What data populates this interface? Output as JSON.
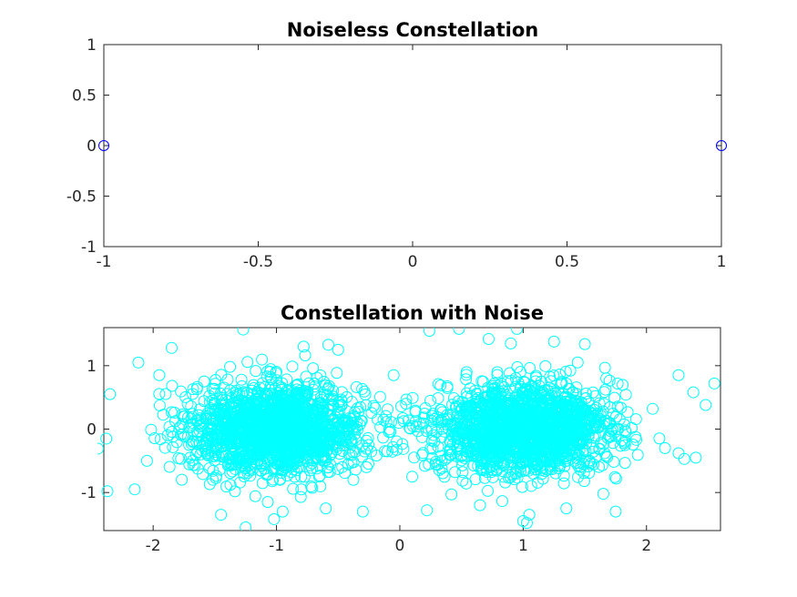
{
  "chart_data": [
    {
      "type": "scatter",
      "title": "Noiseless Constellation",
      "xlabel": "",
      "ylabel": "",
      "xlim": [
        -1,
        1
      ],
      "ylim": [
        -1,
        1
      ],
      "xticks": [
        -1,
        -0.5,
        0,
        0.5,
        1
      ],
      "xtick_labels": [
        "-1",
        "-0.5",
        "0",
        "0.5",
        "1"
      ],
      "yticks": [
        1,
        0.5,
        0,
        -0.5,
        -1
      ],
      "ytick_labels": [
        "1",
        "0.5",
        "0",
        "-0.5",
        "-1"
      ],
      "grid": false,
      "legend": "none",
      "series": [
        {
          "marker": "circle-open",
          "color": "#0000ff",
          "points": [
            [
              -1,
              0
            ],
            [
              1,
              0
            ]
          ]
        }
      ]
    },
    {
      "type": "scatter",
      "title": "Constellation with Noise",
      "xlabel": "",
      "ylabel": "",
      "xlim": [
        -2.4,
        2.6
      ],
      "ylim": [
        -1.6,
        1.6
      ],
      "xticks": [
        -2,
        -1,
        0,
        1,
        2
      ],
      "xtick_labels": [
        "-2",
        "-1",
        "0",
        "1",
        "2"
      ],
      "yticks": [
        1,
        0,
        -1
      ],
      "ytick_labels": [
        "1",
        "0",
        "-1"
      ],
      "grid": false,
      "legend": "none",
      "series": [
        {
          "marker": "circle-open",
          "color": "#00ffff",
          "clusters": [
            {
              "center": [
                -1,
                0
              ],
              "std": 0.35
            },
            {
              "center": [
                1,
                0
              ],
              "std": 0.35
            }
          ],
          "points": [
            [
              -1.27,
              1.57
            ],
            [
              0.48,
              1.58
            ],
            [
              0.95,
              1.58
            ],
            [
              0.24,
              1.55
            ],
            [
              -0.58,
              1.33
            ],
            [
              -0.78,
              1.3
            ],
            [
              1.5,
              1.34
            ],
            [
              -1.85,
              1.28
            ],
            [
              -2.35,
              0.55
            ],
            [
              -2.38,
              -0.15
            ],
            [
              -2.12,
              1.05
            ],
            [
              -2.15,
              -0.95
            ],
            [
              -1.25,
              -1.55
            ],
            [
              -1.02,
              -1.42
            ],
            [
              1.0,
              -1.45
            ],
            [
              1.03,
              -1.48
            ],
            [
              0.22,
              -1.28
            ],
            [
              -0.3,
              -1.3
            ],
            [
              2.55,
              0.72
            ],
            [
              2.48,
              0.38
            ],
            [
              2.38,
              0.58
            ],
            [
              2.26,
              0.85
            ],
            [
              2.4,
              -0.45
            ],
            [
              2.26,
              -0.38
            ],
            [
              2.05,
              0.32
            ],
            [
              2.15,
              -0.3
            ],
            [
              1.75,
              -1.3
            ],
            [
              1.65,
              -1.02
            ],
            [
              -1.95,
              0.85
            ],
            [
              -2.05,
              -0.5
            ],
            [
              0.9,
              1.35
            ],
            [
              1.25,
              1.38
            ],
            [
              -0.5,
              1.25
            ],
            [
              0.72,
              1.42
            ],
            [
              -0.95,
              -1.3
            ],
            [
              -1.45,
              -1.35
            ],
            [
              1.35,
              -1.25
            ],
            [
              0.65,
              -1.2
            ],
            [
              -0.05,
              0.85
            ],
            [
              0.1,
              -0.75
            ],
            [
              0.05,
              0.4
            ],
            [
              -0.1,
              -0.35
            ],
            [
              1.05,
              -1.35
            ],
            [
              -0.6,
              -1.25
            ]
          ]
        }
      ]
    }
  ]
}
